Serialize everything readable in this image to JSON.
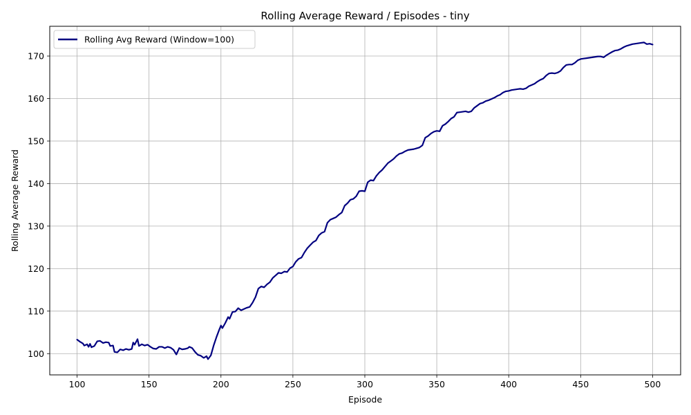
{
  "chart_data": {
    "type": "line",
    "title": "Rolling Average Reward / Episodes - tiny",
    "xlabel": "Episode",
    "ylabel": "Rolling Average Reward",
    "xlim": [
      81,
      1020
    ],
    "ylim": [
      95,
      177
    ],
    "x_ticks": [
      100,
      150,
      200,
      250,
      300,
      350,
      400,
      450,
      500
    ],
    "y_ticks": [
      100,
      110,
      120,
      130,
      140,
      150,
      160,
      170
    ],
    "grid": true,
    "legend_position": "top-left",
    "series": [
      {
        "name": "Rolling Avg Reward (Window=100)",
        "color": "#000080",
        "points": [
          [
            100,
            103.3
          ],
          [
            102,
            102.8
          ],
          [
            104,
            102.4
          ],
          [
            105,
            101.9
          ],
          [
            107,
            102.2
          ],
          [
            108,
            101.6
          ],
          [
            109,
            102.3
          ],
          [
            110,
            101.5
          ],
          [
            112,
            101.8
          ],
          [
            114,
            102.9
          ],
          [
            116,
            103.0
          ],
          [
            118,
            102.5
          ],
          [
            120,
            102.7
          ],
          [
            122,
            102.6
          ],
          [
            123,
            101.8
          ],
          [
            125,
            101.9
          ],
          [
            126,
            100.4
          ],
          [
            128,
            100.3
          ],
          [
            130,
            101.0
          ],
          [
            132,
            100.8
          ],
          [
            134,
            101.1
          ],
          [
            136,
            100.9
          ],
          [
            138,
            101.1
          ],
          [
            139,
            102.6
          ],
          [
            140,
            102.1
          ],
          [
            142,
            103.4
          ],
          [
            143,
            101.8
          ],
          [
            145,
            102.2
          ],
          [
            147,
            101.9
          ],
          [
            149,
            102.1
          ],
          [
            151,
            101.6
          ],
          [
            153,
            101.2
          ],
          [
            155,
            101.1
          ],
          [
            157,
            101.6
          ],
          [
            159,
            101.6
          ],
          [
            161,
            101.3
          ],
          [
            163,
            101.6
          ],
          [
            165,
            101.4
          ],
          [
            167,
            100.9
          ],
          [
            169,
            99.8
          ],
          [
            171,
            101.3
          ],
          [
            173,
            101.0
          ],
          [
            175,
            101.1
          ],
          [
            177,
            101.3
          ],
          [
            178,
            101.6
          ],
          [
            180,
            101.3
          ],
          [
            182,
            100.4
          ],
          [
            184,
            99.7
          ],
          [
            186,
            99.5
          ],
          [
            188,
            99.0
          ],
          [
            190,
            99.4
          ],
          [
            191,
            98.7
          ],
          [
            193,
            99.6
          ],
          [
            195,
            102.0
          ],
          [
            197,
            104.0
          ],
          [
            199,
            105.8
          ],
          [
            200,
            106.6
          ],
          [
            201,
            106.0
          ],
          [
            203,
            107.2
          ],
          [
            205,
            108.6
          ],
          [
            206,
            108.2
          ],
          [
            208,
            109.8
          ],
          [
            210,
            109.9
          ],
          [
            212,
            110.7
          ],
          [
            214,
            110.2
          ],
          [
            216,
            110.5
          ],
          [
            218,
            110.8
          ],
          [
            220,
            111.0
          ],
          [
            222,
            112.0
          ],
          [
            224,
            113.3
          ],
          [
            226,
            115.3
          ],
          [
            228,
            115.8
          ],
          [
            230,
            115.6
          ],
          [
            232,
            116.3
          ],
          [
            234,
            116.8
          ],
          [
            236,
            117.8
          ],
          [
            238,
            118.4
          ],
          [
            240,
            119.0
          ],
          [
            242,
            118.9
          ],
          [
            244,
            119.3
          ],
          [
            246,
            119.2
          ],
          [
            248,
            120.1
          ],
          [
            250,
            120.5
          ],
          [
            252,
            121.6
          ],
          [
            254,
            122.3
          ],
          [
            256,
            122.6
          ],
          [
            258,
            123.8
          ],
          [
            260,
            124.8
          ],
          [
            262,
            125.5
          ],
          [
            264,
            126.2
          ],
          [
            266,
            126.6
          ],
          [
            268,
            127.8
          ],
          [
            270,
            128.4
          ],
          [
            272,
            128.7
          ],
          [
            274,
            130.8
          ],
          [
            276,
            131.5
          ],
          [
            278,
            131.8
          ],
          [
            280,
            132.1
          ],
          [
            282,
            132.7
          ],
          [
            284,
            133.2
          ],
          [
            286,
            134.8
          ],
          [
            288,
            135.4
          ],
          [
            290,
            136.2
          ],
          [
            292,
            136.4
          ],
          [
            294,
            137.0
          ],
          [
            296,
            138.2
          ],
          [
            298,
            138.3
          ],
          [
            300,
            138.2
          ],
          [
            302,
            140.3
          ],
          [
            304,
            140.8
          ],
          [
            306,
            140.7
          ],
          [
            308,
            141.8
          ],
          [
            310,
            142.6
          ],
          [
            312,
            143.2
          ],
          [
            314,
            144.0
          ],
          [
            316,
            144.8
          ],
          [
            318,
            145.3
          ],
          [
            320,
            145.8
          ],
          [
            322,
            146.5
          ],
          [
            324,
            147.0
          ],
          [
            326,
            147.2
          ],
          [
            328,
            147.6
          ],
          [
            330,
            147.9
          ],
          [
            332,
            148.0
          ],
          [
            334,
            148.1
          ],
          [
            336,
            148.3
          ],
          [
            338,
            148.5
          ],
          [
            340,
            149.0
          ],
          [
            342,
            150.8
          ],
          [
            344,
            151.2
          ],
          [
            346,
            151.8
          ],
          [
            348,
            152.2
          ],
          [
            350,
            152.4
          ],
          [
            352,
            152.3
          ],
          [
            354,
            153.6
          ],
          [
            356,
            154.0
          ],
          [
            358,
            154.6
          ],
          [
            360,
            155.3
          ],
          [
            362,
            155.7
          ],
          [
            364,
            156.7
          ],
          [
            366,
            156.8
          ],
          [
            368,
            156.9
          ],
          [
            370,
            157.0
          ],
          [
            372,
            156.8
          ],
          [
            374,
            157.0
          ],
          [
            376,
            157.8
          ],
          [
            378,
            158.3
          ],
          [
            380,
            158.8
          ],
          [
            382,
            159.0
          ],
          [
            384,
            159.4
          ],
          [
            386,
            159.6
          ],
          [
            388,
            159.9
          ],
          [
            390,
            160.2
          ],
          [
            392,
            160.6
          ],
          [
            394,
            160.9
          ],
          [
            396,
            161.4
          ],
          [
            398,
            161.7
          ],
          [
            400,
            161.8
          ],
          [
            402,
            162.0
          ],
          [
            404,
            162.1
          ],
          [
            406,
            162.2
          ],
          [
            408,
            162.3
          ],
          [
            410,
            162.2
          ],
          [
            412,
            162.4
          ],
          [
            414,
            162.9
          ],
          [
            416,
            163.2
          ],
          [
            418,
            163.5
          ],
          [
            420,
            164.0
          ],
          [
            422,
            164.4
          ],
          [
            424,
            164.7
          ],
          [
            426,
            165.4
          ],
          [
            428,
            165.9
          ],
          [
            430,
            166.0
          ],
          [
            432,
            165.9
          ],
          [
            434,
            166.1
          ],
          [
            436,
            166.5
          ],
          [
            438,
            167.3
          ],
          [
            440,
            167.9
          ],
          [
            442,
            168.0
          ],
          [
            444,
            168.0
          ],
          [
            446,
            168.4
          ],
          [
            448,
            169.0
          ],
          [
            450,
            169.3
          ],
          [
            452,
            169.4
          ],
          [
            454,
            169.5
          ],
          [
            456,
            169.6
          ],
          [
            458,
            169.7
          ],
          [
            460,
            169.8
          ],
          [
            462,
            169.9
          ],
          [
            464,
            169.9
          ],
          [
            466,
            169.7
          ],
          [
            468,
            170.2
          ],
          [
            470,
            170.6
          ],
          [
            472,
            171.0
          ],
          [
            474,
            171.3
          ],
          [
            476,
            171.4
          ],
          [
            478,
            171.7
          ],
          [
            480,
            172.1
          ],
          [
            482,
            172.4
          ],
          [
            484,
            172.6
          ],
          [
            486,
            172.8
          ],
          [
            488,
            172.9
          ],
          [
            490,
            173.0
          ],
          [
            492,
            173.1
          ],
          [
            494,
            173.2
          ],
          [
            496,
            172.8
          ],
          [
            498,
            172.9
          ],
          [
            500,
            172.7
          ]
        ]
      }
    ]
  }
}
